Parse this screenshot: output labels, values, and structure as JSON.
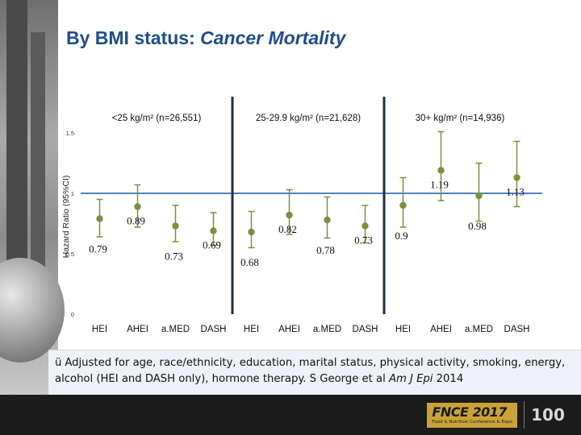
{
  "title": {
    "main": "By BMI status: ",
    "italic": "Cancer Mortality"
  },
  "chart_data": {
    "type": "scatter",
    "title": "By BMI status: Cancer Mortality",
    "ylabel": "Hazard Ratio (95%CI)",
    "ylim": [
      0,
      1.5
    ],
    "yticks": [
      "1.5",
      "1",
      "0.5",
      "0"
    ],
    "reference_line": 1,
    "groups": [
      {
        "label": "<25 kg/m² (n=26,551)",
        "categories": [
          "HEI",
          "AHEI",
          "a.MED",
          "DASH"
        ],
        "values": [
          0.79,
          0.89,
          0.73,
          0.69
        ],
        "lower": [
          0.64,
          0.72,
          0.6,
          0.57
        ],
        "upper": [
          0.95,
          1.07,
          0.9,
          0.84
        ],
        "value_labels": [
          "0.79",
          "0.89",
          "0.73",
          "0.69"
        ]
      },
      {
        "label": "25-29.9 kg/m² (n=21,628)",
        "categories": [
          "HEI",
          "AHEI",
          "a.MED",
          "DASH"
        ],
        "values": [
          0.68,
          0.82,
          0.78,
          0.73
        ],
        "lower": [
          0.55,
          0.66,
          0.63,
          0.59
        ],
        "upper": [
          0.85,
          1.03,
          0.97,
          0.9
        ],
        "value_labels": [
          "0.68",
          "0.82",
          "0.78",
          "0.73"
        ]
      },
      {
        "label": "30+ kg/m² (n=14,936)",
        "categories": [
          "HEI",
          "AHEI",
          "a.MED",
          "DASH"
        ],
        "values": [
          0.9,
          1.19,
          0.98,
          1.13
        ],
        "lower": [
          0.72,
          0.94,
          0.77,
          0.89
        ],
        "upper": [
          1.13,
          1.51,
          1.25,
          1.43
        ],
        "value_labels": [
          "0.9",
          "1.19",
          "0.98",
          "1.13"
        ]
      }
    ],
    "colors": {
      "marker": "#76923c",
      "reference": "#4f81bd",
      "divider": "#1f2d4d"
    }
  },
  "footnote": {
    "check": "ü",
    "text_a": "Adjusted for age, race/ethnicity, education, marital status, physical activity, smoking, energy, alcohol (HEI and DASH only), hormone therapy. S George et al ",
    "journal": "Am J Epi",
    "text_b": " 2014"
  },
  "footer": {
    "logo_main": "FNCE 2017",
    "logo_sub": "Food & Nutrition Conference & Expo",
    "anniversary": "100"
  }
}
